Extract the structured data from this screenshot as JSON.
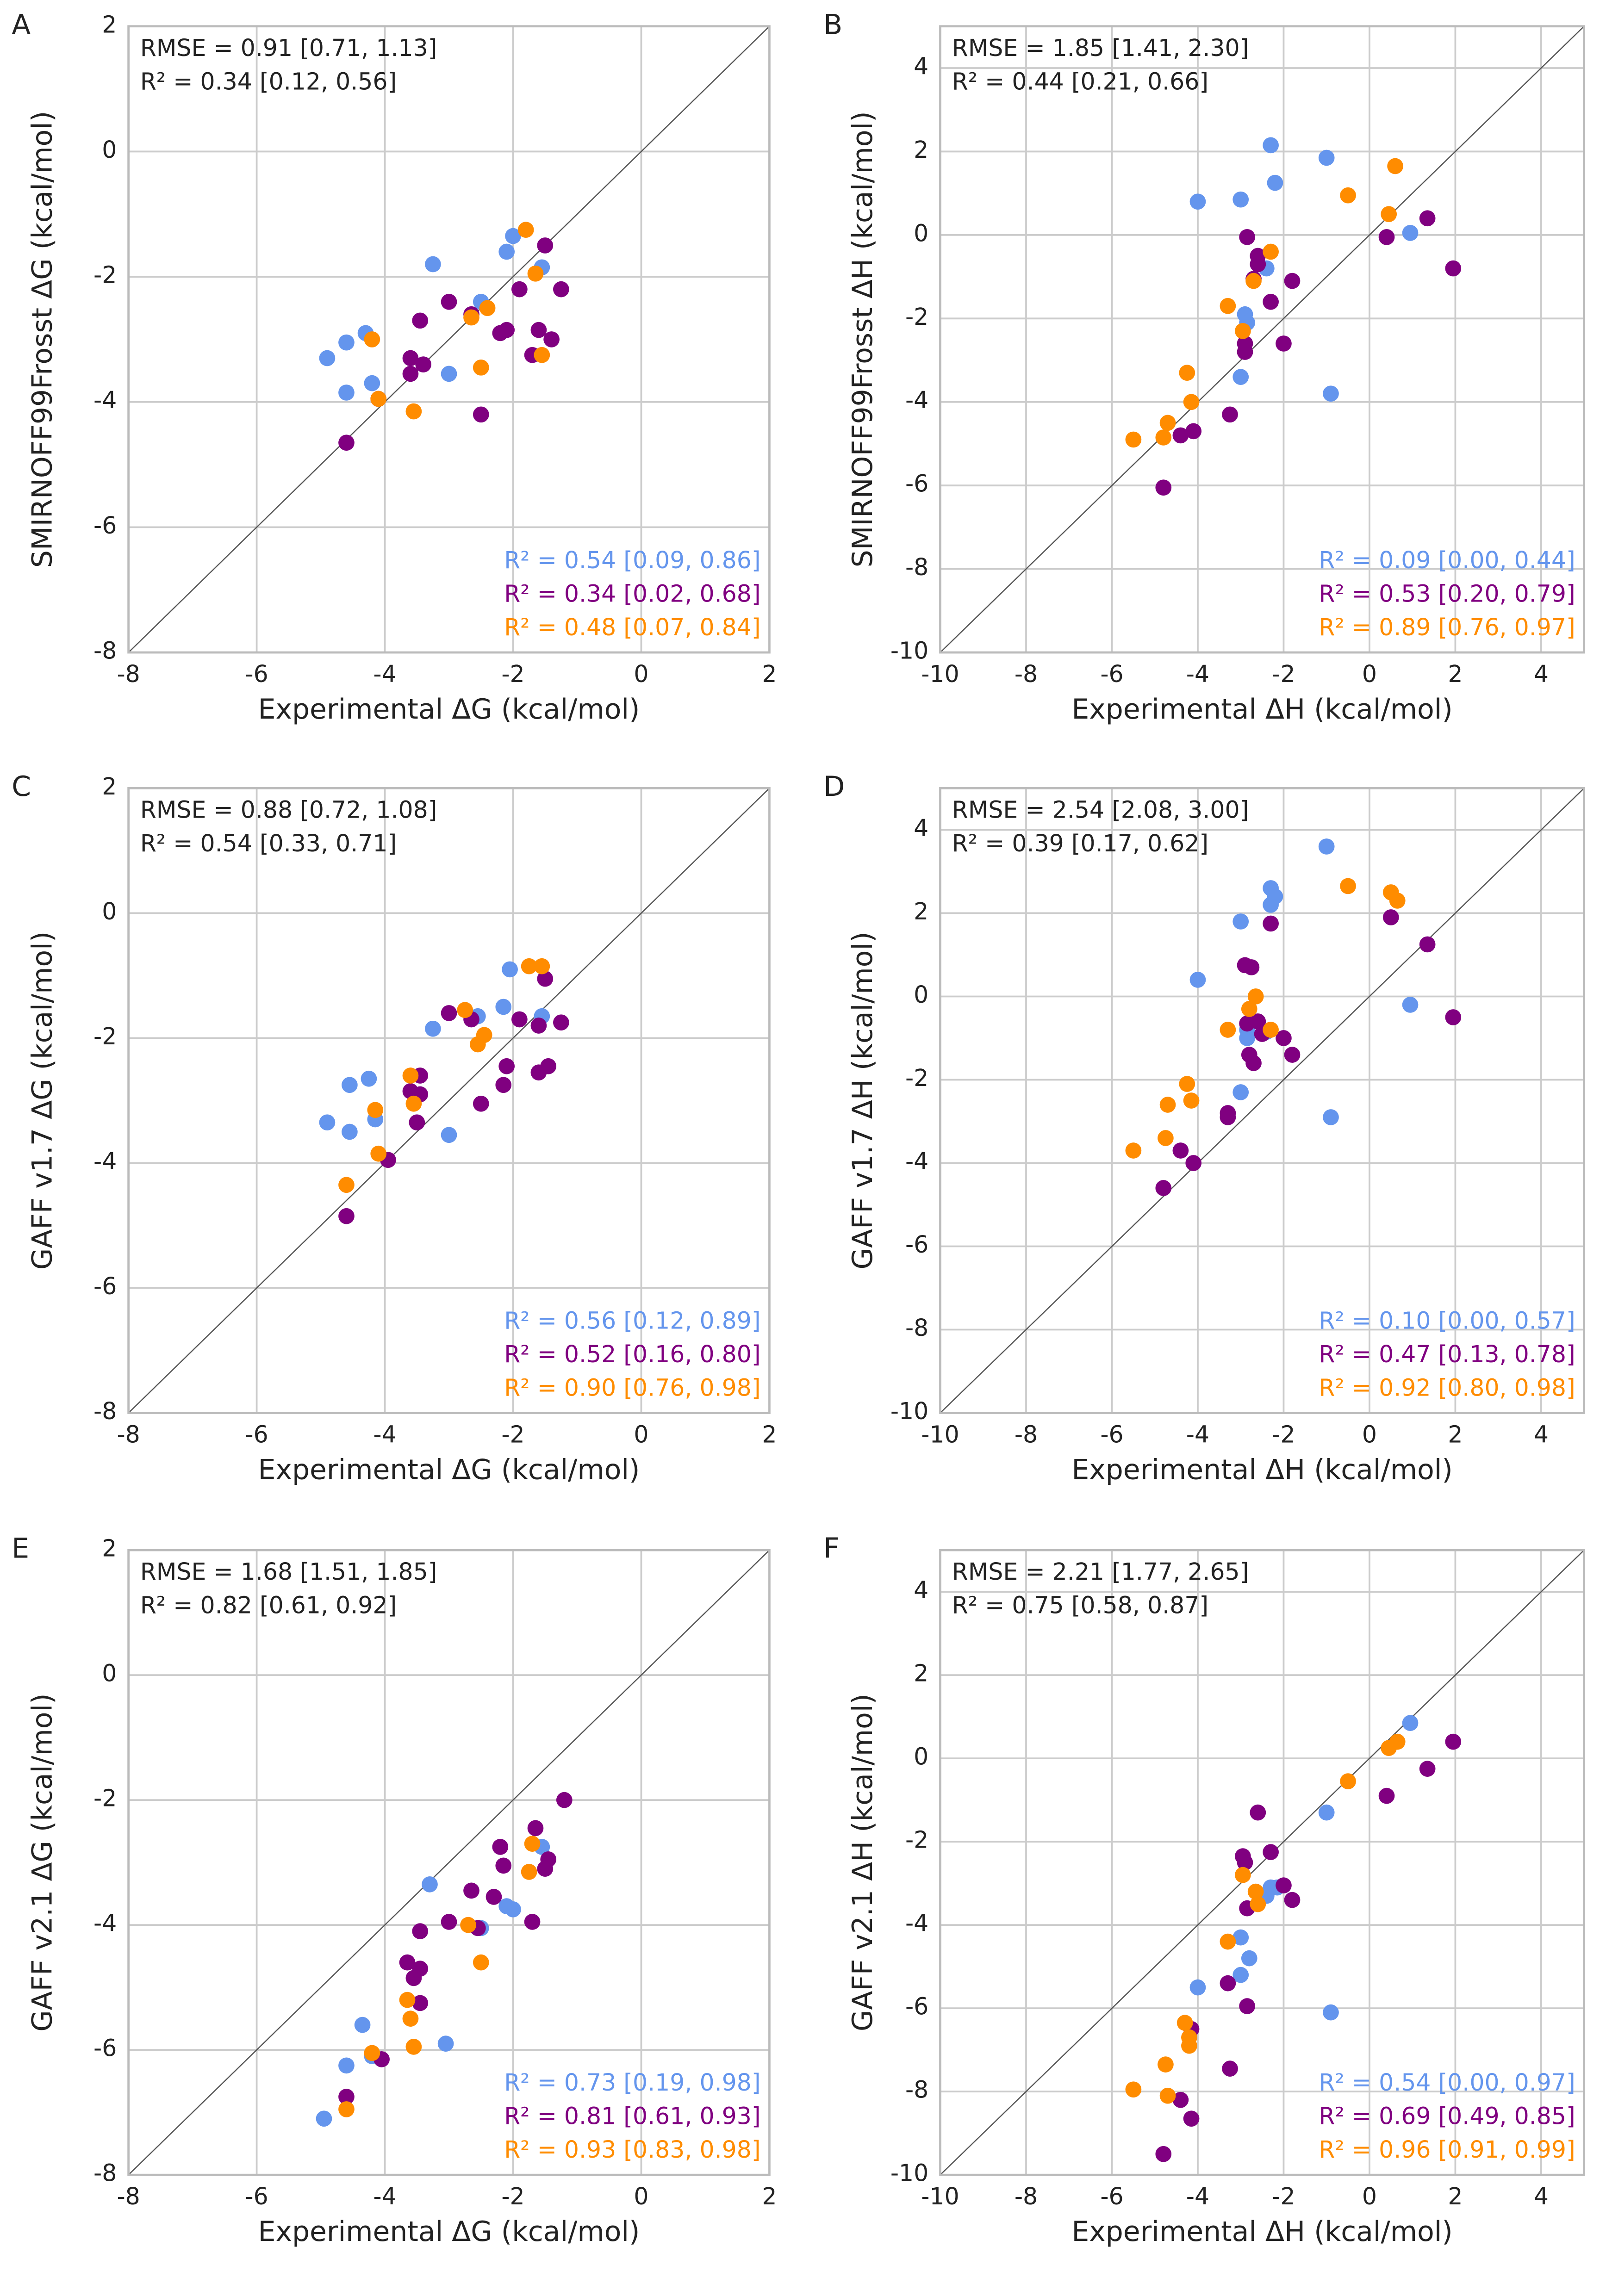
{
  "chart_data": [
    {
      "type": "scatter",
      "panel": "A",
      "xlabel": "Experimental ΔG (kcal/mol)",
      "ylabel": "SMIRNOFF99Frosst ΔG (kcal/mol)",
      "annotations": [
        "RMSE = 0.91 [0.71, 1.13]",
        "R² = 0.34 [0.12, 0.56]"
      ],
      "xlim": [
        -8,
        2
      ],
      "ylim": [
        -8,
        2
      ],
      "xticks": [
        -8,
        -6,
        -4,
        -2,
        0,
        2
      ],
      "yticks": [
        -8,
        -6,
        -4,
        -2,
        0,
        2
      ],
      "grid": true,
      "series": [
        {
          "color": "#6495ed",
          "label": "R² = 0.54 [0.09, 0.86]",
          "x": [
            -4.9,
            -4.6,
            -4.3,
            -4.6,
            -4.2,
            -3.0,
            -3.25,
            -2.5,
            -2.1,
            -2.0,
            -1.55
          ],
          "y": [
            -3.3,
            -3.05,
            -2.9,
            -3.85,
            -3.7,
            -3.55,
            -1.8,
            -2.4,
            -1.6,
            -1.35,
            -1.85
          ]
        },
        {
          "color": "#800080",
          "label": "R² = 0.34 [0.02, 0.68]",
          "x": [
            -4.6,
            -4.1,
            -3.6,
            -3.6,
            -3.45,
            -3.4,
            -3.0,
            -2.65,
            -2.5,
            -2.2,
            -2.1,
            -1.9,
            -1.6,
            -1.5,
            -1.4,
            -1.25,
            -1.7
          ],
          "y": [
            -4.65,
            -3.95,
            -3.3,
            -3.55,
            -2.7,
            -3.4,
            -2.4,
            -2.6,
            -4.2,
            -2.9,
            -2.85,
            -2.2,
            -2.85,
            -1.5,
            -3.0,
            -2.2,
            -3.25
          ]
        },
        {
          "color": "#ff8c00",
          "label": "R² = 0.48 [0.07, 0.84]",
          "x": [
            -4.2,
            -4.1,
            -3.55,
            -2.65,
            -2.5,
            -2.4,
            -1.8,
            -1.65,
            -1.55
          ],
          "y": [
            -3.0,
            -3.95,
            -4.15,
            -2.65,
            -3.45,
            -2.5,
            -1.25,
            -1.95,
            -3.25
          ]
        }
      ]
    },
    {
      "type": "scatter",
      "panel": "B",
      "xlabel": "Experimental ΔH (kcal/mol)",
      "ylabel": "SMIRNOFF99Frosst ΔH (kcal/mol)",
      "annotations": [
        "RMSE = 1.85 [1.41, 2.30]",
        "R² = 0.44 [0.21, 0.66]"
      ],
      "xlim": [
        -10,
        5
      ],
      "ylim": [
        -10,
        5
      ],
      "xticks": [
        -10,
        -8,
        -6,
        -4,
        -2,
        0,
        2,
        4
      ],
      "yticks": [
        -10,
        -8,
        -6,
        -4,
        -2,
        0,
        2,
        4
      ],
      "grid": true,
      "series": [
        {
          "color": "#6495ed",
          "label": "R² = 0.09 [0.00, 0.44]",
          "x": [
            -4.0,
            -3.0,
            -2.3,
            -2.2,
            -1.0,
            -2.9,
            -2.85,
            -3.0,
            -2.4,
            -0.9,
            0.95
          ],
          "y": [
            0.8,
            0.85,
            2.15,
            1.25,
            1.85,
            -1.9,
            -2.1,
            -3.4,
            -0.8,
            -3.8,
            0.05
          ]
        },
        {
          "color": "#800080",
          "label": "R² = 0.53 [0.20, 0.79]",
          "x": [
            -4.8,
            -4.4,
            -4.1,
            -3.25,
            -2.9,
            -2.9,
            -2.85,
            -2.7,
            -2.6,
            -2.6,
            -2.3,
            -2.0,
            -1.8,
            0.4,
            1.35,
            1.95
          ],
          "y": [
            -6.05,
            -4.8,
            -4.7,
            -4.3,
            -2.6,
            -2.8,
            -0.05,
            -1.05,
            -0.5,
            -0.7,
            -1.6,
            -2.6,
            -1.1,
            -0.05,
            0.4,
            -0.8
          ]
        },
        {
          "color": "#ff8c00",
          "label": "R² = 0.89 [0.76, 0.97]",
          "x": [
            -5.5,
            -4.8,
            -4.7,
            -4.25,
            -4.15,
            -3.3,
            -2.95,
            -2.7,
            -2.3,
            -0.5,
            0.45,
            0.6
          ],
          "y": [
            -4.9,
            -4.85,
            -4.5,
            -3.3,
            -4.0,
            -1.7,
            -2.3,
            -1.1,
            -0.4,
            0.95,
            0.5,
            1.65
          ]
        }
      ]
    },
    {
      "type": "scatter",
      "panel": "C",
      "xlabel": "Experimental ΔG (kcal/mol)",
      "ylabel": "GAFF v1.7 ΔG (kcal/mol)",
      "annotations": [
        "RMSE = 0.88 [0.72, 1.08]",
        "R² = 0.54 [0.33, 0.71]"
      ],
      "xlim": [
        -8,
        2
      ],
      "ylim": [
        -8,
        2
      ],
      "xticks": [
        -8,
        -6,
        -4,
        -2,
        0,
        2
      ],
      "yticks": [
        -8,
        -6,
        -4,
        -2,
        0,
        2
      ],
      "grid": true,
      "series": [
        {
          "color": "#6495ed",
          "label": "R² = 0.56 [0.12, 0.89]",
          "x": [
            -4.9,
            -4.55,
            -4.55,
            -4.25,
            -4.15,
            -3.25,
            -3.0,
            -2.55,
            -2.15,
            -2.05,
            -1.55
          ],
          "y": [
            -3.35,
            -2.75,
            -3.5,
            -2.65,
            -3.3,
            -1.85,
            -3.55,
            -1.65,
            -1.5,
            -0.9,
            -1.65
          ]
        },
        {
          "color": "#800080",
          "label": "R² = 0.52 [0.16, 0.80]",
          "x": [
            -4.6,
            -3.95,
            -3.6,
            -3.5,
            -3.45,
            -3.45,
            -3.0,
            -2.65,
            -2.5,
            -2.15,
            -2.1,
            -1.9,
            -1.6,
            -1.6,
            -1.5,
            -1.45,
            -1.25
          ],
          "y": [
            -4.85,
            -3.95,
            -2.85,
            -3.35,
            -2.6,
            -2.9,
            -1.6,
            -1.7,
            -3.05,
            -2.75,
            -2.45,
            -1.7,
            -1.8,
            -2.55,
            -1.05,
            -2.45,
            -1.75
          ]
        },
        {
          "color": "#ff8c00",
          "label": "R² = 0.90 [0.76, 0.98]",
          "x": [
            -4.6,
            -4.15,
            -4.1,
            -3.6,
            -2.75,
            -2.55,
            -2.45,
            -1.75,
            -1.55,
            -3.55
          ],
          "y": [
            -4.35,
            -3.15,
            -3.85,
            -2.6,
            -1.55,
            -2.1,
            -1.95,
            -0.85,
            -0.85,
            -3.05
          ]
        }
      ]
    },
    {
      "type": "scatter",
      "panel": "D",
      "xlabel": "Experimental ΔH (kcal/mol)",
      "ylabel": "GAFF v1.7 ΔH (kcal/mol)",
      "annotations": [
        "RMSE = 2.54 [2.08, 3.00]",
        "R² = 0.39 [0.17, 0.62]"
      ],
      "xlim": [
        -10,
        5
      ],
      "ylim": [
        -10,
        5
      ],
      "xticks": [
        -10,
        -8,
        -6,
        -4,
        -2,
        0,
        2,
        4
      ],
      "yticks": [
        -10,
        -8,
        -6,
        -4,
        -2,
        0,
        2,
        4
      ],
      "grid": true,
      "series": [
        {
          "color": "#6495ed",
          "label": "R² = 0.10 [0.00, 0.57]",
          "x": [
            -4.0,
            -3.0,
            -2.3,
            -2.2,
            -2.3,
            -1.0,
            -2.85,
            -2.85,
            -3.0,
            -2.4,
            -0.9,
            0.95
          ],
          "y": [
            0.4,
            1.8,
            2.6,
            2.4,
            2.2,
            3.6,
            -0.8,
            -1.0,
            -2.3,
            -0.85,
            -2.9,
            -0.2
          ]
        },
        {
          "color": "#800080",
          "label": "R² = 0.47 [0.13, 0.78]",
          "x": [
            -4.8,
            -4.4,
            -4.1,
            -3.3,
            -3.3,
            -2.9,
            -2.85,
            -2.8,
            -2.7,
            -2.6,
            -2.5,
            -2.3,
            -2.0,
            -1.8,
            0.5,
            1.35,
            1.95,
            -2.75
          ],
          "y": [
            -4.6,
            -3.7,
            -4.0,
            -2.9,
            -2.8,
            0.75,
            -0.65,
            -1.4,
            -1.6,
            -0.6,
            -0.9,
            1.75,
            -1.0,
            -1.4,
            1.9,
            1.25,
            -0.5,
            0.7
          ]
        },
        {
          "color": "#ff8c00",
          "label": "R² = 0.92 [0.80, 0.98]",
          "x": [
            -5.5,
            -4.75,
            -4.7,
            -4.25,
            -4.15,
            -3.3,
            -2.8,
            -2.65,
            -2.3,
            -0.5,
            0.5,
            0.65
          ],
          "y": [
            -3.7,
            -3.4,
            -2.6,
            -2.1,
            -2.5,
            -0.8,
            -0.3,
            0.0,
            -0.8,
            2.65,
            2.5,
            2.3
          ]
        }
      ]
    },
    {
      "type": "scatter",
      "panel": "E",
      "xlabel": "Experimental ΔG (kcal/mol)",
      "ylabel": "GAFF v2.1 ΔG (kcal/mol)",
      "annotations": [
        "RMSE = 1.68 [1.51, 1.85]",
        "R² = 0.82 [0.61, 0.92]"
      ],
      "xlim": [
        -8,
        2
      ],
      "ylim": [
        -8,
        2
      ],
      "xticks": [
        -8,
        -6,
        -4,
        -2,
        0,
        2
      ],
      "yticks": [
        -8,
        -6,
        -4,
        -2,
        0,
        2
      ],
      "grid": true,
      "series": [
        {
          "color": "#6495ed",
          "label": "R² = 0.73 [0.19, 0.98]",
          "x": [
            -4.95,
            -4.6,
            -4.35,
            -4.2,
            -3.05,
            -3.3,
            -2.5,
            -2.1,
            -2.0,
            -1.55
          ],
          "y": [
            -7.1,
            -6.25,
            -5.6,
            -6.1,
            -5.9,
            -3.35,
            -4.05,
            -3.7,
            -3.75,
            -2.75
          ]
        },
        {
          "color": "#800080",
          "label": "R² = 0.81 [0.61, 0.93]",
          "x": [
            -4.6,
            -4.05,
            -3.65,
            -3.55,
            -3.45,
            -3.45,
            -3.45,
            -3.0,
            -2.65,
            -2.55,
            -2.3,
            -2.2,
            -2.15,
            -1.7,
            -1.65,
            -1.5,
            -1.45,
            -1.2
          ],
          "y": [
            -6.75,
            -6.15,
            -4.6,
            -4.85,
            -4.1,
            -4.7,
            -5.25,
            -3.95,
            -3.45,
            -4.05,
            -3.55,
            -2.75,
            -3.05,
            -3.95,
            -2.45,
            -3.1,
            -2.95,
            -2.0
          ]
        },
        {
          "color": "#ff8c00",
          "label": "R² = 0.93 [0.83, 0.98]",
          "x": [
            -4.6,
            -4.2,
            -3.65,
            -3.6,
            -3.55,
            -2.7,
            -2.5,
            -1.75,
            -1.7
          ],
          "y": [
            -6.95,
            -6.05,
            -5.2,
            -5.5,
            -5.95,
            -4.0,
            -4.6,
            -3.15,
            -2.7
          ]
        }
      ]
    },
    {
      "type": "scatter",
      "panel": "F",
      "xlabel": "Experimental ΔH (kcal/mol)",
      "ylabel": "GAFF v2.1 ΔH (kcal/mol)",
      "annotations": [
        "RMSE = 2.21 [1.77, 2.65]",
        "R² = 0.75 [0.58, 0.87]"
      ],
      "xlim": [
        -10,
        5
      ],
      "ylim": [
        -10,
        5
      ],
      "xticks": [
        -10,
        -8,
        -6,
        -4,
        -2,
        0,
        2,
        4
      ],
      "yticks": [
        -10,
        -8,
        -6,
        -4,
        -2,
        0,
        2,
        4
      ],
      "grid": true,
      "series": [
        {
          "color": "#6495ed",
          "label": "R² = 0.54 [0.00, 0.97]",
          "x": [
            -4.0,
            -3.0,
            -3.0,
            -2.8,
            -2.4,
            -2.3,
            -1.0,
            -0.9,
            0.95,
            -2.15
          ],
          "y": [
            -5.5,
            -4.3,
            -5.2,
            -4.8,
            -3.3,
            -3.1,
            -1.3,
            -6.1,
            0.85,
            -3.1
          ]
        },
        {
          "color": "#800080",
          "label": "R² = 0.69 [0.49, 0.85]",
          "x": [
            -4.8,
            -4.4,
            -4.15,
            -4.15,
            -3.25,
            -3.3,
            -2.95,
            -2.9,
            -2.85,
            -2.85,
            -2.6,
            -2.3,
            -2.0,
            -1.8,
            0.4,
            1.35,
            1.95
          ],
          "y": [
            -9.5,
            -8.2,
            -8.65,
            -6.5,
            -7.45,
            -5.4,
            -2.35,
            -2.5,
            -3.6,
            -5.95,
            -1.3,
            -2.25,
            -3.05,
            -3.4,
            -0.9,
            -0.25,
            0.4
          ]
        },
        {
          "color": "#ff8c00",
          "label": "R² = 0.96 [0.91, 0.99]",
          "x": [
            -5.5,
            -4.75,
            -4.7,
            -4.3,
            -4.2,
            -4.2,
            -3.3,
            -2.95,
            -2.65,
            -2.6,
            -0.5,
            0.45,
            0.65
          ],
          "y": [
            -7.95,
            -7.35,
            -8.1,
            -6.35,
            -6.7,
            -6.9,
            -4.4,
            -2.8,
            -3.2,
            -3.5,
            -0.55,
            0.25,
            0.4
          ]
        }
      ]
    }
  ]
}
